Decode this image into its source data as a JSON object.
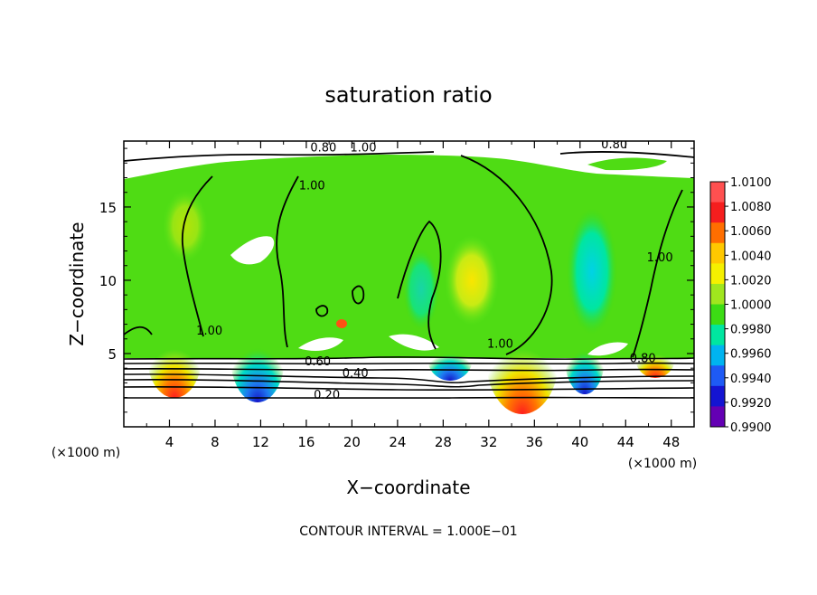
{
  "chart_data": {
    "type": "heatmap",
    "title": "saturation ratio",
    "xlabel": "X−coordinate",
    "ylabel": "Z−coordinate",
    "x_unit": "(×1000 m)",
    "y_unit": "(×1000 m)",
    "xlim": [
      0,
      50
    ],
    "ylim": [
      0,
      19.5
    ],
    "x_ticks": [
      "4",
      "8",
      "12",
      "16",
      "20",
      "24",
      "28",
      "32",
      "36",
      "40",
      "44",
      "48"
    ],
    "y_ticks": [
      "5",
      "10",
      "15"
    ],
    "footer": "CONTOUR INTERVAL = 1.000E−01",
    "colorbar": {
      "labels": [
        "1.0100",
        "1.0080",
        "1.0060",
        "1.0040",
        "1.0020",
        "1.0000",
        "0.9980",
        "0.9960",
        "0.9940",
        "0.9920",
        "0.9900"
      ],
      "colors": [
        "#ff5050",
        "#f51e1e",
        "#ff6e00",
        "#ffc800",
        "#f5f000",
        "#a0e61e",
        "#3cdc14",
        "#00e6a0",
        "#00b4f0",
        "#1e5af5",
        "#1414d2",
        "#6400b4"
      ]
    },
    "contour_labels": [
      {
        "text": "0.80",
        "x": 17.5,
        "y": 18.8
      },
      {
        "text": "1.00",
        "x": 21,
        "y": 18.8
      },
      {
        "text": "0.80",
        "x": 43,
        "y": 19.0
      },
      {
        "text": "1.00",
        "x": 16.5,
        "y": 16.2
      },
      {
        "text": "1.00",
        "x": 7.5,
        "y": 6.3
      },
      {
        "text": "1.00",
        "x": 47,
        "y": 11.3
      },
      {
        "text": "1.00",
        "x": 33,
        "y": 5.4
      },
      {
        "text": "0.60",
        "x": 17,
        "y": 4.2
      },
      {
        "text": "0.40",
        "x": 20.3,
        "y": 3.4
      },
      {
        "text": "0.20",
        "x": 17.8,
        "y": 1.9
      },
      {
        "text": "0.80",
        "x": 45.5,
        "y": 4.4
      }
    ],
    "iso_levels": [
      0.2,
      0.4,
      0.6,
      0.8,
      1.0
    ],
    "grid": false
  }
}
